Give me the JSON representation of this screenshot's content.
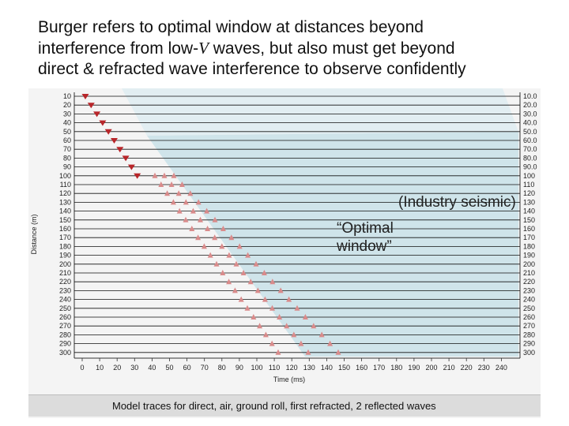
{
  "slide": {
    "title_line1": "Burger refers to optimal window at distances beyond",
    "title_line2_pre": "interference from low-",
    "title_line2_v": "V",
    "title_line2_post": " waves, but also must get beyond",
    "title_line3": "direct & refracted wave interference to observe confidently"
  },
  "figure": {
    "industry_label": "(Industry seismic)",
    "optimal_label_line1": "“Optimal",
    "optimal_label_line2": "window”",
    "caption": "Model traces for direct, air, ground roll, first refracted, 2 reflected waves",
    "ylabel": "Distance (m)",
    "xlabel": "Time (ms)",
    "x_ticks": [
      "0",
      "10",
      "20",
      "30",
      "40",
      "50",
      "60",
      "70",
      "80",
      "90",
      "100",
      "110",
      "120",
      "130",
      "140",
      "150",
      "160",
      "170",
      "180",
      "190",
      "200",
      "210",
      "220",
      "230",
      "240"
    ],
    "y_ticks_left": [
      "10",
      "20",
      "30",
      "40",
      "50",
      "60",
      "70",
      "80",
      "90",
      "100",
      "110",
      "120",
      "130",
      "140",
      "150",
      "160",
      "170",
      "180",
      "190",
      "200",
      "210",
      "220",
      "230",
      "240",
      "250",
      "260",
      "270",
      "280",
      "290",
      "300"
    ],
    "y_ticks_right": [
      "10.0",
      "20.0",
      "30.0",
      "40.0",
      "50.0",
      "60.0",
      "70.0",
      "80.0",
      "90.0",
      "100",
      "110",
      "120",
      "130",
      "140",
      "150",
      "160",
      "170",
      "180",
      "190",
      "200",
      "210",
      "220",
      "230",
      "240",
      "250",
      "260",
      "270",
      "280",
      "290",
      "300"
    ],
    "colors": {
      "window_shade": "#cfe4ea",
      "industry_shade": "#e2eef2",
      "direct_marker": "#b8262a",
      "refracted_marker": "#d98b8b",
      "trace": "#111111"
    }
  }
}
